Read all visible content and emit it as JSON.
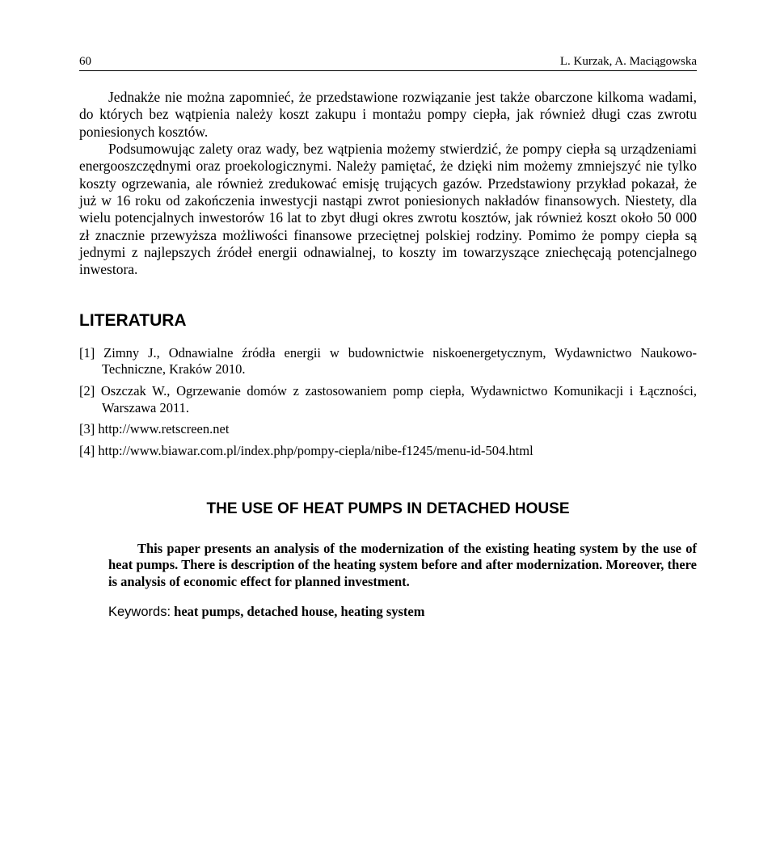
{
  "header": {
    "page_number": "60",
    "authors": "L. Kurzak, A. Maciągowska"
  },
  "body": {
    "para1_part1": "Jednakże nie można zapomnieć, że przedstawione rozwiązanie jest także obarczone kilkoma wadami, do których bez wątpienia należy koszt zakupu i montażu pompy ciepła, jak również długi czas zwrotu poniesionych kosztów.",
    "para1_part2": "Podsumowując zalety oraz wady, bez wątpienia możemy stwierdzić, że pompy ciepła są urządzeniami energooszczędnymi oraz proekologicznymi. Należy pamiętać, że dzięki nim możemy zmniejszyć nie tylko koszty ogrzewania, ale również zredukować emisję trujących gazów. Przedstawiony przykład pokazał, że już w 16 roku od zakończenia inwestycji nastąpi zwrot poniesionych nakładów finansowych. Niestety, dla wielu potencjalnych inwestorów 16 lat to zbyt długi okres zwrotu kosztów, jak również koszt około 50 000 zł znacznie przewyższa możliwości finansowe przeciętnej polskiej rodziny. Pomimo że pompy ciepła są jednymi z najlepszych źródeł energii odnawialnej, to koszty im towarzyszące zniechęcają potencjalnego inwestora."
  },
  "literature": {
    "heading": "LITERATURA",
    "refs": [
      "[1] Zimny J., Odnawialne źródła energii w budownictwie niskoenergetycznym, Wydawnictwo Naukowo-Techniczne, Kraków 2010.",
      "[2] Oszczak W., Ogrzewanie domów z zastosowaniem pomp ciepła, Wydawnictwo Komunikacji i Łączności, Warszawa 2011.",
      "[3] http://www.retscreen.net",
      "[4] http://www.biawar.com.pl/index.php/pompy-ciepla/nibe-f1245/menu-id-504.html"
    ]
  },
  "english": {
    "title": "THE USE OF HEAT PUMPS IN DETACHED HOUSE",
    "abstract": "This paper presents an analysis of the modernization of the existing heating system by the use of heat pumps. There is description of the heating system before and after modernization. Moreover, there is analysis of economic effect for planned investment.",
    "keywords_label": "Keywords:",
    "keywords_value": " heat pumps, detached house, heating system"
  }
}
